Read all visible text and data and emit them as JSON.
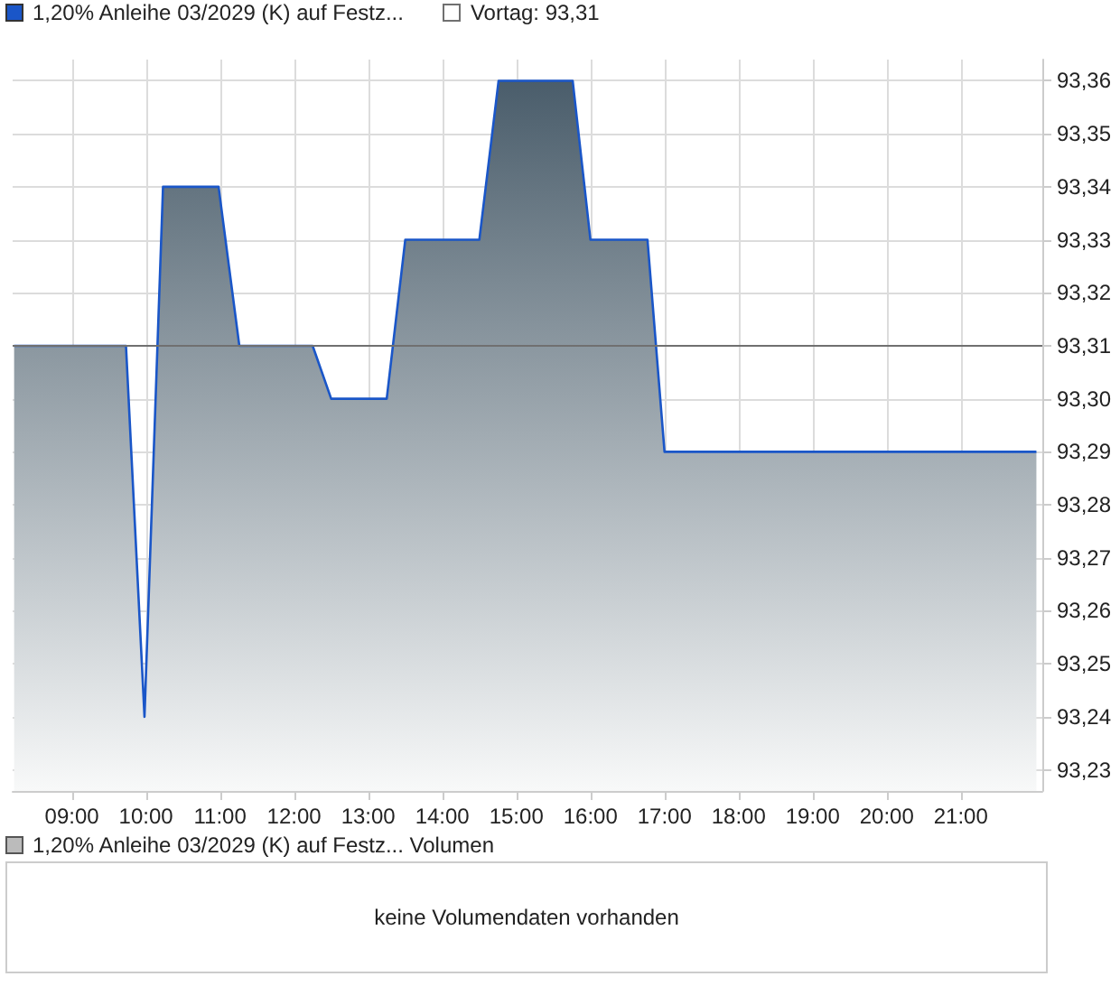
{
  "chart_data": [
    {
      "type": "area",
      "series": [
        {
          "name": "1,20% Anleihe 03/2029 (K) auf Festz...",
          "color": "#1a56c8",
          "x": [
            8.22,
            9.73,
            9.98,
            10.23,
            10.98,
            11.26,
            12.25,
            12.5,
            13.25,
            13.5,
            14.5,
            14.76,
            15.76,
            16.0,
            16.77,
            17.0,
            22.02
          ],
          "values": [
            93.31,
            93.31,
            93.24,
            93.34,
            93.34,
            93.31,
            93.31,
            93.3,
            93.3,
            93.33,
            93.33,
            93.36,
            93.36,
            93.33,
            93.33,
            93.29,
            93.29
          ]
        }
      ],
      "xlim": [
        8.2,
        22.1
      ],
      "xticks": [
        {
          "value": 9,
          "label": "09:00"
        },
        {
          "value": 10,
          "label": "10:00"
        },
        {
          "value": 11,
          "label": "11:00"
        },
        {
          "value": 12,
          "label": "12:00"
        },
        {
          "value": 13,
          "label": "13:00"
        },
        {
          "value": 14,
          "label": "14:00"
        },
        {
          "value": 15,
          "label": "15:00"
        },
        {
          "value": 16,
          "label": "16:00"
        },
        {
          "value": 17,
          "label": "17:00"
        },
        {
          "value": 18,
          "label": "18:00"
        },
        {
          "value": 19,
          "label": "19:00"
        },
        {
          "value": 20,
          "label": "20:00"
        },
        {
          "value": 21,
          "label": "21:00"
        }
      ],
      "ylim": [
        93.226,
        93.364
      ],
      "yticks": [
        {
          "value": 93.23,
          "label": "93,23"
        },
        {
          "value": 93.24,
          "label": "93,24"
        },
        {
          "value": 93.25,
          "label": "93,25"
        },
        {
          "value": 93.26,
          "label": "93,26"
        },
        {
          "value": 93.27,
          "label": "93,27"
        },
        {
          "value": 93.28,
          "label": "93,28"
        },
        {
          "value": 93.29,
          "label": "93,29"
        },
        {
          "value": 93.3,
          "label": "93,30"
        },
        {
          "value": 93.31,
          "label": "93,31"
        },
        {
          "value": 93.32,
          "label": "93,32"
        },
        {
          "value": 93.33,
          "label": "93,33"
        },
        {
          "value": 93.34,
          "label": "93,34"
        },
        {
          "value": 93.35,
          "label": "93,35"
        },
        {
          "value": 93.36,
          "label": "93,36"
        }
      ],
      "ref_lines": [
        {
          "axis": "y",
          "value": 93.31,
          "label": "Vortag: 93,31",
          "color": "#707070"
        }
      ],
      "grid": true,
      "legend": "top left",
      "marker": "none"
    },
    {
      "type": "other",
      "title": "1,20% Anleihe 03/2029 (K) auf Festz... Volumen",
      "annotations": [
        "keine Volumendaten vorhanden"
      ]
    }
  ]
}
